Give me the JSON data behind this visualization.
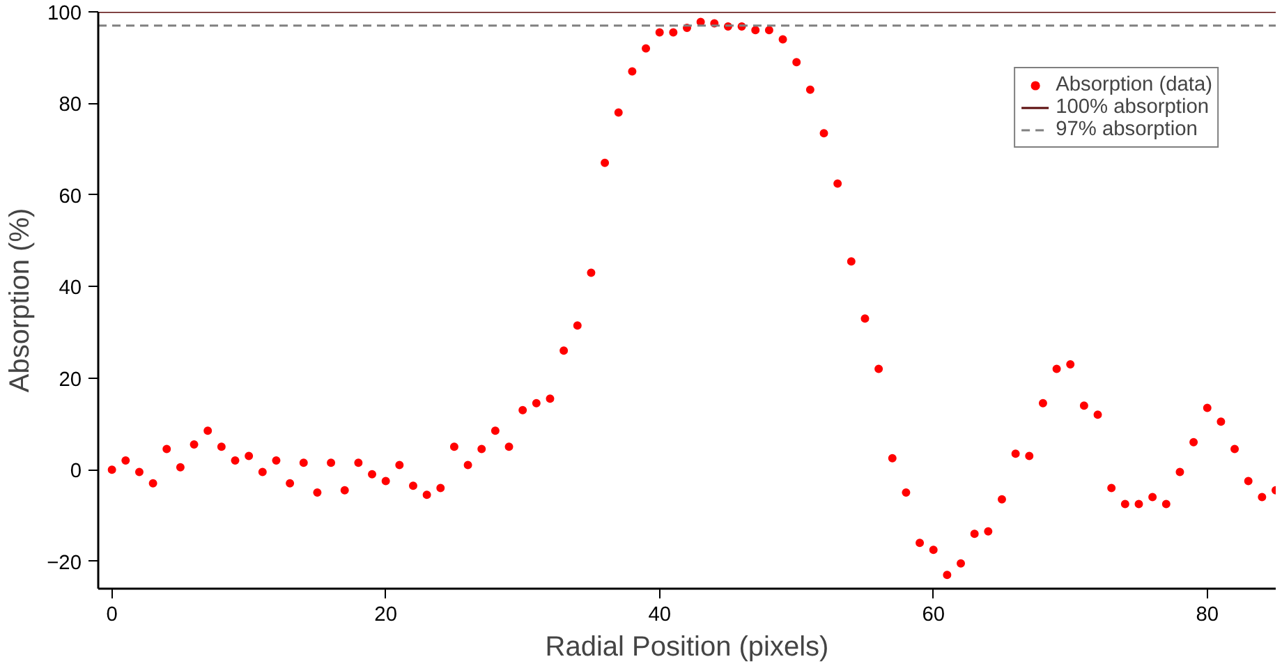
{
  "chart_data": {
    "type": "scatter",
    "xlabel": "Radial Position (pixels)",
    "ylabel": "Absorption (%)",
    "x": [
      0,
      1,
      2,
      3,
      4,
      5,
      6,
      7,
      8,
      9,
      10,
      11,
      12,
      13,
      14,
      15,
      16,
      17,
      18,
      19,
      20,
      21,
      22,
      23,
      24,
      25,
      26,
      27,
      28,
      29,
      30,
      31,
      32,
      33,
      34,
      35,
      36,
      37,
      38,
      39,
      40,
      41,
      42,
      43,
      44,
      45,
      46,
      47,
      48,
      49,
      50,
      51,
      52,
      53,
      54,
      55,
      56,
      57,
      58,
      59,
      60,
      61,
      62,
      63,
      64,
      65,
      66,
      67,
      68,
      69,
      70,
      71,
      72,
      73,
      74,
      75,
      76,
      77,
      78,
      79,
      80,
      81,
      82,
      83,
      84,
      85
    ],
    "series": [
      {
        "name": "Absorption (data)",
        "color": "#ff0000",
        "values": [
          0,
          2,
          -0.5,
          -3,
          4.5,
          0.5,
          5.5,
          8.5,
          5,
          2,
          3,
          -0.5,
          2,
          -3,
          1.5,
          -5,
          1.5,
          -4.5,
          1.5,
          -1,
          -2.5,
          1,
          -3.5,
          -5.5,
          -4,
          5,
          1,
          4.5,
          8.5,
          5,
          13,
          14.5,
          15.5,
          26,
          31.5,
          43,
          67,
          78,
          87,
          92,
          95.5,
          95.5,
          96.5,
          97.8,
          97.5,
          96.8,
          96.8,
          96,
          96,
          94,
          89,
          83,
          73.5,
          62.5,
          45.5,
          33,
          22,
          2.5,
          -5,
          -16,
          -17.5,
          -23,
          -20.5,
          -14,
          -13.5,
          -6.5,
          3.5,
          3,
          14.5,
          22,
          23,
          14,
          12,
          -4,
          -7.5,
          -7.5,
          -6,
          -7.5,
          -0.5,
          6,
          13.5,
          10.5,
          4.5,
          -2.5,
          -6,
          -4.5
        ]
      }
    ],
    "ref_lines": [
      {
        "axis": "y",
        "value": 100,
        "label": "100% absorption",
        "color": "#5a0a0a",
        "line_style": "solid"
      },
      {
        "axis": "y",
        "value": 97,
        "label": "97% absorption",
        "color": "#808080",
        "line_style": "dashed"
      }
    ],
    "marker": "circle",
    "xlim": [
      -1,
      85
    ],
    "ylim": [
      -26,
      100
    ],
    "xticks": [
      0,
      20,
      40,
      60,
      80
    ],
    "yticks": [
      -20,
      0,
      20,
      40,
      60,
      80,
      100
    ],
    "grid": false,
    "legend": "top right"
  }
}
